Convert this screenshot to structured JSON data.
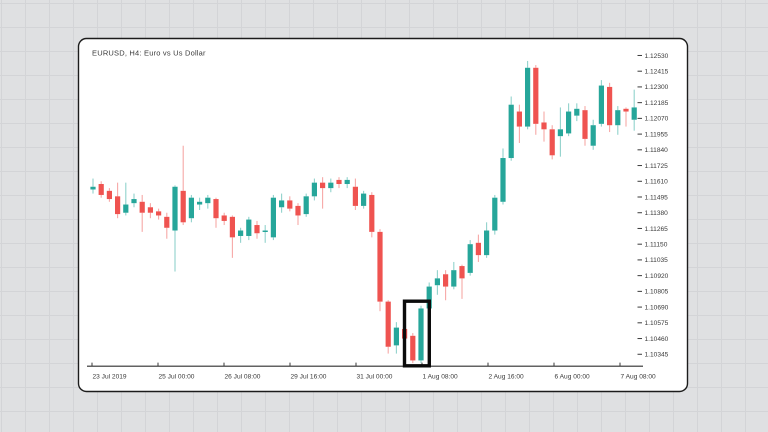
{
  "chart_data": {
    "type": "candlestick",
    "title": "EURUSD, H4: Euro vs Us Dollar",
    "x_axis": {
      "tick_labels": [
        "23 Jul 2019",
        "25 Jul 00:00",
        "26 Jul 08:00",
        "29 Jul 16:00",
        "31 Jul 00:00",
        "1 Aug 08:00",
        "2 Aug 16:00",
        "6 Aug 00:00",
        "7 Aug 08:00"
      ]
    },
    "y_axis": {
      "side": "right",
      "tick_labels": [
        "1.12530",
        "1.12415",
        "1.12300",
        "1.12185",
        "1.12070",
        "1.11955",
        "1.11840",
        "1.11725",
        "1.11610",
        "1.11495",
        "1.11380",
        "1.11265",
        "1.11150",
        "1.11035",
        "1.10920",
        "1.10805",
        "1.10690",
        "1.10575",
        "1.10460",
        "1.10345"
      ],
      "max": 1.1253,
      "min": 1.10345,
      "step": 0.00115
    },
    "ylim": [
      1.10257,
      1.1257
    ],
    "grid": "no gridlines inside panel; faint gray grid on page background",
    "legend": "none",
    "colors": {
      "bullish": "#26a69a",
      "bearish": "#ef5350"
    },
    "candles_ohlc": [
      [
        1.1155,
        1.1163,
        1.1152,
        1.1157
      ],
      [
        1.1159,
        1.1161,
        1.1149,
        1.1151
      ],
      [
        1.1154,
        1.1156,
        1.1146,
        1.1148
      ],
      [
        1.115,
        1.116,
        1.1134,
        1.1137
      ],
      [
        1.1138,
        1.116,
        1.1136,
        1.1144
      ],
      [
        1.1145,
        1.1152,
        1.1142,
        1.1148
      ],
      [
        1.1146,
        1.1151,
        1.1124,
        1.1138
      ],
      [
        1.1142,
        1.1145,
        1.1134,
        1.1138
      ],
      [
        1.1139,
        1.1141,
        1.1133,
        1.1136
      ],
      [
        1.1135,
        1.1138,
        1.1119,
        1.1127
      ],
      [
        1.1125,
        1.1158,
        1.1095,
        1.1157
      ],
      [
        1.1154,
        1.1187,
        1.1129,
        1.1131
      ],
      [
        1.1134,
        1.1151,
        1.1131,
        1.1149
      ],
      [
        1.1144,
        1.1149,
        1.114,
        1.1146
      ],
      [
        1.1145,
        1.1151,
        1.1141,
        1.1149
      ],
      [
        1.1148,
        1.1149,
        1.1127,
        1.1134
      ],
      [
        1.1136,
        1.1138,
        1.1129,
        1.1132
      ],
      [
        1.1135,
        1.1136,
        1.1105,
        1.112
      ],
      [
        1.1121,
        1.1127,
        1.1116,
        1.1125
      ],
      [
        1.1121,
        1.1135,
        1.1118,
        1.1133
      ],
      [
        1.1129,
        1.1132,
        1.1119,
        1.1123
      ],
      [
        1.1124,
        1.1129,
        1.1116,
        1.1125
      ],
      [
        1.112,
        1.1151,
        1.1118,
        1.1149
      ],
      [
        1.1142,
        1.1152,
        1.1138,
        1.1147
      ],
      [
        1.1147,
        1.115,
        1.1139,
        1.1141
      ],
      [
        1.1143,
        1.1145,
        1.1129,
        1.1136
      ],
      [
        1.1137,
        1.1152,
        1.1135,
        1.115
      ],
      [
        1.115,
        1.1163,
        1.1147,
        1.116
      ],
      [
        1.116,
        1.1164,
        1.1141,
        1.1156
      ],
      [
        1.1156,
        1.1163,
        1.1153,
        1.116
      ],
      [
        1.1162,
        1.1164,
        1.1156,
        1.1159
      ],
      [
        1.1159,
        1.1164,
        1.1156,
        1.1162
      ],
      [
        1.1157,
        1.1163,
        1.114,
        1.1143
      ],
      [
        1.1143,
        1.1154,
        1.1141,
        1.1152
      ],
      [
        1.1151,
        1.1153,
        1.112,
        1.1124
      ],
      [
        1.1124,
        1.1126,
        1.1066,
        1.1073
      ],
      [
        1.1073,
        1.1074,
        1.1035,
        1.104
      ],
      [
        1.1041,
        1.1058,
        1.1035,
        1.1054
      ],
      [
        1.1053,
        1.1056,
        1.1041,
        1.1046
      ],
      [
        1.1048,
        1.105,
        1.1028,
        1.103
      ],
      [
        1.103,
        1.107,
        1.1028,
        1.1068
      ],
      [
        1.1068,
        1.1087,
        1.1054,
        1.1084
      ],
      [
        1.1085,
        1.1096,
        1.1078,
        1.109
      ],
      [
        1.1093,
        1.1096,
        1.1074,
        1.1084
      ],
      [
        1.1084,
        1.1102,
        1.1082,
        1.1096
      ],
      [
        1.1099,
        1.11,
        1.1075,
        1.109
      ],
      [
        1.1094,
        1.1118,
        1.1092,
        1.1115
      ],
      [
        1.1116,
        1.1122,
        1.1102,
        1.1107
      ],
      [
        1.1107,
        1.1131,
        1.1105,
        1.1125
      ],
      [
        1.1125,
        1.1151,
        1.1122,
        1.1149
      ],
      [
        1.1146,
        1.1185,
        1.1144,
        1.1178
      ],
      [
        1.1178,
        1.1223,
        1.1176,
        1.1217
      ],
      [
        1.1212,
        1.1217,
        1.1189,
        1.1201
      ],
      [
        1.1201,
        1.1249,
        1.1199,
        1.1244
      ],
      [
        1.1244,
        1.1246,
        1.1195,
        1.1203
      ],
      [
        1.1204,
        1.1212,
        1.119,
        1.1199
      ],
      [
        1.1199,
        1.1202,
        1.1177,
        1.118
      ],
      [
        1.1194,
        1.1215,
        1.1179,
        1.1199
      ],
      [
        1.1196,
        1.1218,
        1.1194,
        1.1212
      ],
      [
        1.1209,
        1.1218,
        1.1205,
        1.1214
      ],
      [
        1.1213,
        1.1216,
        1.1187,
        1.1192
      ],
      [
        1.1187,
        1.1206,
        1.1184,
        1.1202
      ],
      [
        1.1203,
        1.1235,
        1.1201,
        1.1231
      ],
      [
        1.123,
        1.1233,
        1.1197,
        1.1202
      ],
      [
        1.1202,
        1.1216,
        1.1195,
        1.1213
      ],
      [
        1.1214,
        1.1215,
        1.1201,
        1.1212
      ],
      [
        1.1206,
        1.1228,
        1.1198,
        1.1215
      ]
    ],
    "annotations": [
      {
        "type": "highlight-rectangle",
        "candle_indices": [
          39,
          40
        ],
        "color": "#0b0b0b",
        "description": "thick black rectangle drawn around the red/teal reversal candle pair at the swing low near 1 Aug 08:00"
      }
    ]
  }
}
